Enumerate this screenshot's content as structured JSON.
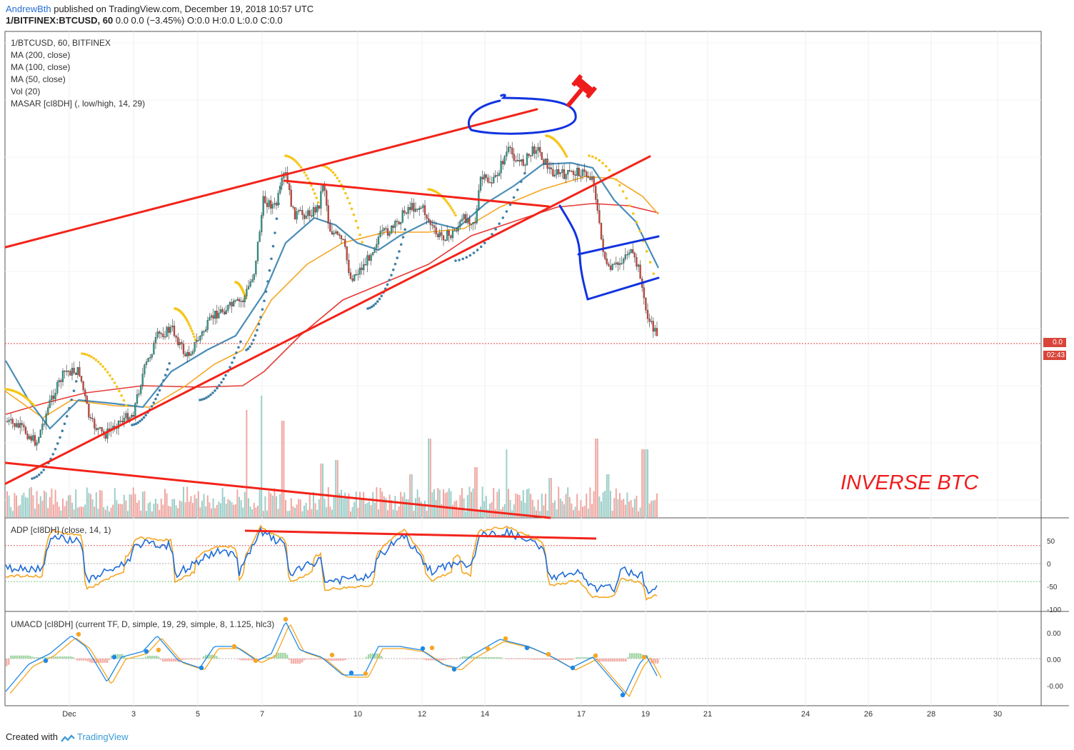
{
  "header": {
    "author": "AndrewBth",
    "published_text": "published on TradingView.com, December 19, 2018 10:57 UTC",
    "symbol_line": "1/BITFINEX:BTCUSD, 60",
    "ohlc_text": "0.0 0.0 (−3.45%) O:0.0 H:0.0 L:0.0 C:0.0"
  },
  "main_pane": {
    "legend": [
      "1/BTCUSD, 60, BITFINEX",
      "MA (200, close)",
      "MA (100, close)",
      "MA (50, close)",
      "Vol (20)",
      "MASAR [cI8DH] (, low/high, 14, 29)"
    ],
    "price_tag": "0.0",
    "countdown_tag": "02:43",
    "annotation_text": "INVERSE BTC"
  },
  "adp_pane": {
    "label": "ADP [cI8DH] (close, 14, 1)",
    "ticks": [
      "50",
      "0",
      "-50",
      "-100"
    ]
  },
  "umacd_pane": {
    "label": "UMACD [cI8DH] (current TF, D, simple, 19, 29, simple, 8, 1.125, hlc3)",
    "ticks": [
      "0.00",
      "0.00",
      "-0.00"
    ]
  },
  "time_axis": {
    "labels": [
      "Dec",
      "3",
      "5",
      "7",
      "10",
      "12",
      "14",
      "17",
      "19",
      "21",
      "24",
      "26",
      "28",
      "30"
    ]
  },
  "footer": {
    "created_with": "Created with",
    "brand": "TradingView"
  },
  "chart_data": {
    "type": "line",
    "symbol": "1/BTCUSD",
    "timeframe": "60",
    "exchange": "BITFINEX",
    "x_dates": [
      "Dec",
      "3",
      "5",
      "7",
      "10",
      "12",
      "14",
      "17",
      "19"
    ],
    "series": [
      {
        "name": "1/BTCUSD",
        "color": "#26a69a",
        "values": [
          0.0,
          0.0,
          0.0,
          0.0,
          0.0,
          0.0,
          0.0,
          0.0,
          0.0
        ]
      },
      {
        "name": "MA (200, close)",
        "color": "#e53935"
      },
      {
        "name": "MA (100, close)",
        "color": "#f5a623"
      },
      {
        "name": "MA (50, close)",
        "color": "#4a8db7"
      },
      {
        "name": "Vol (20)",
        "color": "#9ccfc9"
      },
      {
        "name": "MASAR",
        "color": "#f6c518"
      }
    ],
    "adp": {
      "ylim": [
        -100,
        50
      ],
      "levels": [
        50,
        0,
        -50
      ]
    },
    "umacd": {
      "levels": [
        0.0,
        0.0,
        -0.0
      ]
    },
    "last_price_change_pct": -3.45,
    "grid": true
  }
}
